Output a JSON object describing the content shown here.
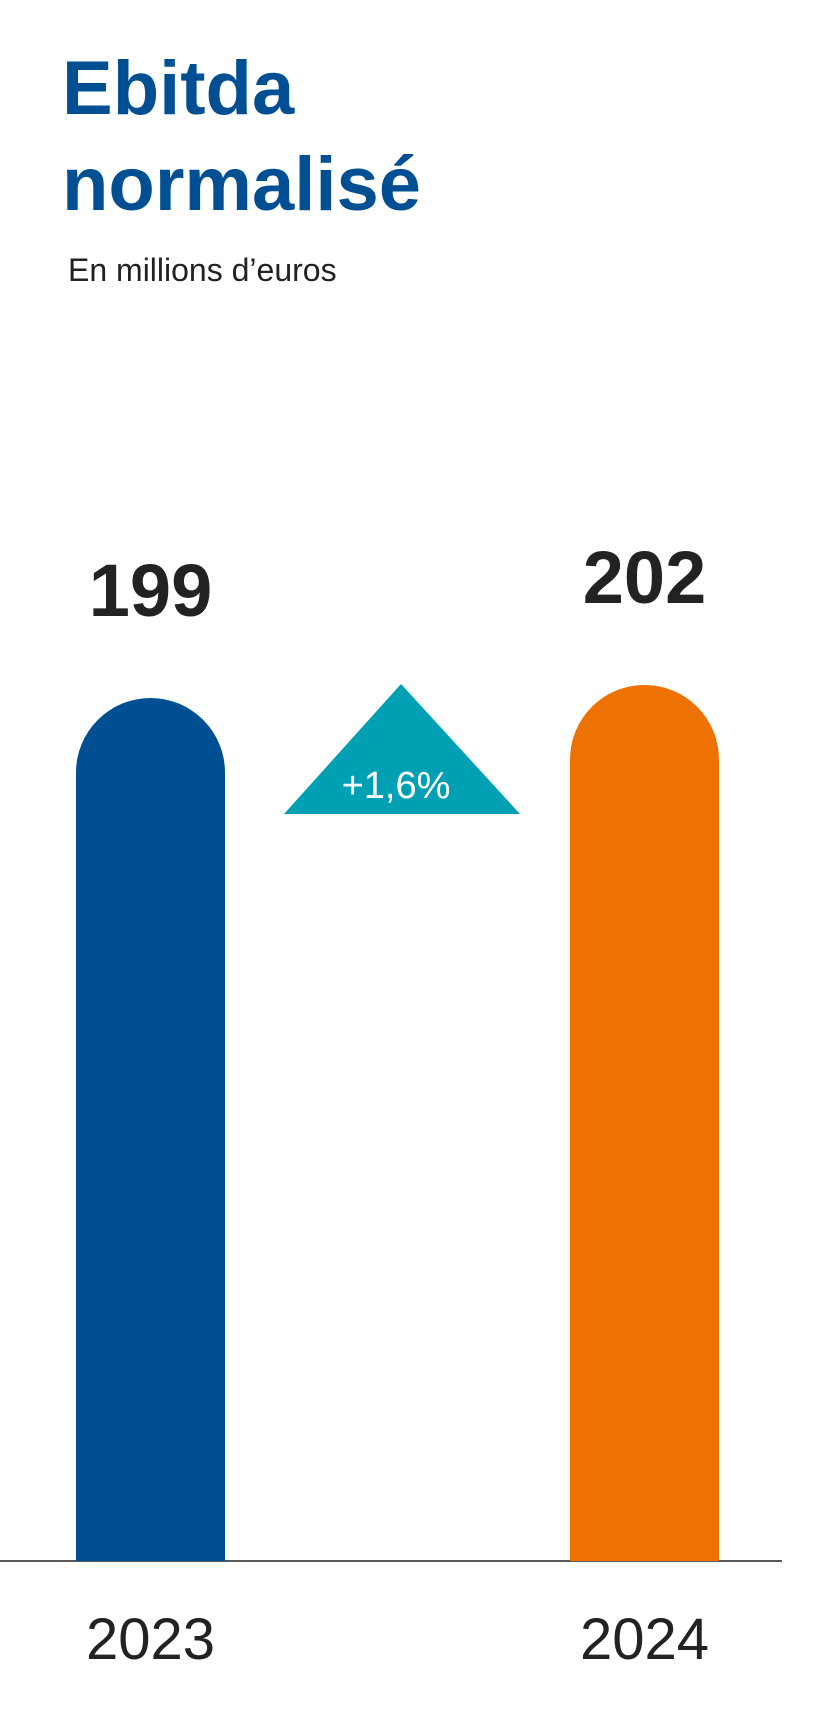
{
  "chart_data": {
    "type": "bar",
    "title_lines": [
      "Ebitda",
      "normalisé"
    ],
    "subtitle": "En millions d’euros",
    "categories": [
      "2023",
      "2024"
    ],
    "values": [
      199,
      202
    ],
    "colors": [
      "#004f92",
      "#ee7203"
    ],
    "annotation": {
      "text": "+1,6%",
      "color": "#00a0b4"
    }
  }
}
